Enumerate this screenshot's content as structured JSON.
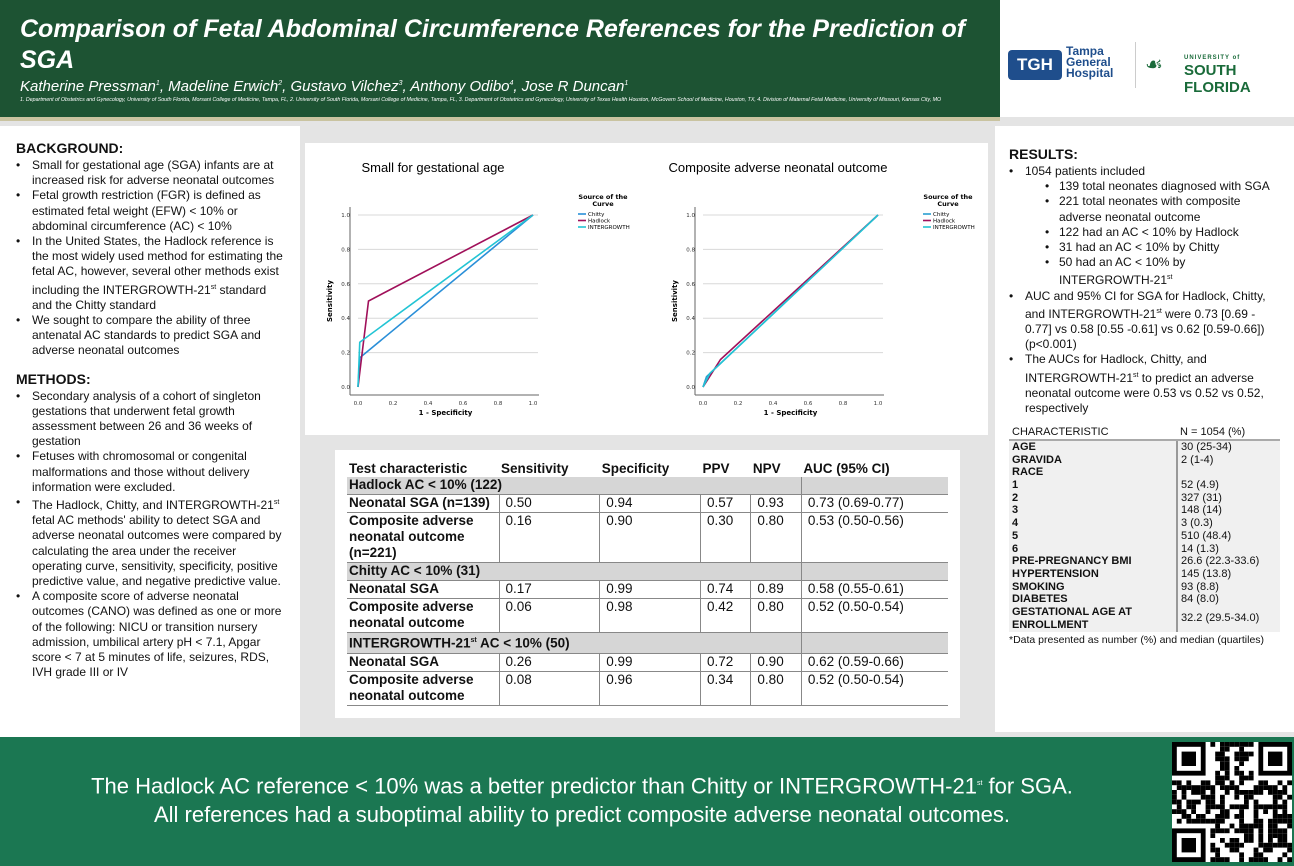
{
  "header": {
    "title": "Comparison of Fetal Abdominal Circumference References for the Prediction of SGA",
    "authors": [
      {
        "name": "Katherine Pressman",
        "sup": "1"
      },
      {
        "name": "Madeline Erwich",
        "sup": "2"
      },
      {
        "name": "Gustavo Vilchez",
        "sup": "3"
      },
      {
        "name": "Anthony Odibo",
        "sup": "4"
      },
      {
        "name": "Jose R Duncan",
        "sup": "1"
      }
    ],
    "affiliations": "1. Department of Obstetrics and Gynecology, University of South Florida, Morsani College of Medicine, Tampa, FL, 2. University of South Florida, Morsani College of Medicine, Tampa, FL, 3. Department of Obstetrics and Gynecology, University of Texas Health Houston, McGovern School of Medicine, Houston, TX, 4. Division of Maternal Fetal Medicine, University of Missouri, Kansas City, MO"
  },
  "logos": {
    "tgh_mark": "TGH",
    "tgh_name": "Tampa General Hospital",
    "usf_top": "UNIVERSITY of",
    "usf_main": "SOUTH FLORIDA"
  },
  "background": {
    "heading": "BACKGROUND:",
    "items": [
      "Small for gestational age (SGA) infants are at increased risk for adverse neonatal outcomes",
      "Fetal growth restriction (FGR) is defined as estimated fetal weight (EFW) < 10% or abdominal circumference (AC) < 10%",
      "In the United States, the Hadlock reference is the most widely used method for estimating the fetal AC, however, several other methods exist including the INTERGROWTH-21st standard and the Chitty standard",
      "We sought to compare the ability of three antenatal AC standards to predict SGA and adverse neonatal outcomes"
    ]
  },
  "methods": {
    "heading": "METHODS:",
    "items": [
      "Secondary analysis of a cohort of singleton gestations that underwent fetal growth assessment between 26 and 36 weeks of gestation",
      "Fetuses with chromosomal or congenital malformations and those without delivery information were excluded.",
      "The Hadlock, Chitty, and INTERGROWTH-21st fetal AC methods' ability to detect SGA and adverse neonatal outcomes were compared by calculating the area under the receiver operating curve, sensitivity, specificity, positive predictive value, and negative predictive value.",
      "A composite score of adverse neonatal outcomes (CANO) was defined as one or more of the following: NICU or transition nursery admission, umbilical artery pH < 7.1, Apgar score < 7 at 5 minutes of life, seizures, RDS, IVH grade III or IV"
    ]
  },
  "chart_data": [
    {
      "type": "line",
      "title": "Small for gestational age",
      "xlabel": "1 - Specificity",
      "ylabel": "Sensitivity",
      "xlim": [
        0,
        1
      ],
      "ylim": [
        0,
        1
      ],
      "xticks": [
        "0.0",
        "0.2",
        "0.4",
        "0.6",
        "0.8",
        "1.0"
      ],
      "yticks": [
        "0.0",
        "0.2",
        "0.4",
        "0.6",
        "0.8",
        "1.0"
      ],
      "grid": "horizontal",
      "legend_title": "Source of the Curve",
      "legend": "top-right",
      "series": [
        {
          "name": "Chitty",
          "color": "#2a8fd8",
          "points": [
            [
              0,
              0
            ],
            [
              0.01,
              0.17
            ],
            [
              1,
              1
            ]
          ]
        },
        {
          "name": "Hadlock",
          "color": "#a0105a",
          "points": [
            [
              0,
              0
            ],
            [
              0.06,
              0.5
            ],
            [
              1,
              1
            ]
          ]
        },
        {
          "name": "INTERGROWTH",
          "color": "#22c4d4",
          "points": [
            [
              0,
              0
            ],
            [
              0.01,
              0.26
            ],
            [
              1,
              1
            ]
          ]
        }
      ]
    },
    {
      "type": "line",
      "title": "Composite adverse neonatal outcome",
      "xlabel": "1 - Specificity",
      "ylabel": "Sensitivity",
      "xlim": [
        0,
        1
      ],
      "ylim": [
        0,
        1
      ],
      "xticks": [
        "0.0",
        "0.2",
        "0.4",
        "0.6",
        "0.8",
        "1.0"
      ],
      "yticks": [
        "0.0",
        "0.2",
        "0.4",
        "0.6",
        "0.8",
        "1.0"
      ],
      "grid": "horizontal",
      "legend_title": "Source of the Curve",
      "legend": "top-right",
      "series": [
        {
          "name": "Chitty",
          "color": "#2a9fd0",
          "points": [
            [
              0,
              0
            ],
            [
              0.02,
              0.06
            ],
            [
              1,
              1
            ]
          ]
        },
        {
          "name": "Hadlock",
          "color": "#a0105a",
          "points": [
            [
              0,
              0
            ],
            [
              0.1,
              0.16
            ],
            [
              1,
              1
            ]
          ]
        },
        {
          "name": "INTERGROWTH",
          "color": "#22c4d4",
          "points": [
            [
              0,
              0
            ],
            [
              0.04,
              0.08
            ],
            [
              1,
              1
            ]
          ]
        }
      ]
    }
  ],
  "main_table": {
    "headers": [
      "Test characteristic",
      "Sensitivity",
      "Specificity",
      "PPV",
      "NPV",
      "AUC (95% CI)"
    ],
    "groups": [
      {
        "label": "Hadlock AC < 10% (122)",
        "rows": [
          [
            "Neonatal SGA (n=139)",
            "0.50",
            "0.94",
            "0.57",
            "0.93",
            "0.73 (0.69-0.77)"
          ],
          [
            "Composite adverse neonatal outcome (n=221)",
            "0.16",
            "0.90",
            "0.30",
            "0.80",
            "0.53 (0.50-0.56)"
          ]
        ]
      },
      {
        "label": "Chitty AC < 10% (31)",
        "rows": [
          [
            "Neonatal SGA",
            "0.17",
            "0.99",
            "0.74",
            "0.89",
            "0.58 (0.55-0.61)"
          ],
          [
            "Composite adverse neonatal outcome",
            "0.06",
            "0.98",
            "0.42",
            "0.80",
            "0.52 (0.50-0.54)"
          ]
        ]
      },
      {
        "label": "INTERGROWTH-21st AC < 10% (50)",
        "rows": [
          [
            "Neonatal SGA",
            "0.26",
            "0.99",
            "0.72",
            "0.90",
            "0.62 (0.59-0.66)"
          ],
          [
            "Composite adverse neonatal outcome",
            "0.08",
            "0.96",
            "0.34",
            "0.80",
            "0.52 (0.50-0.54)"
          ]
        ]
      }
    ]
  },
  "results": {
    "heading": "RESULTS:",
    "items": [
      {
        "text": "1054 patients included",
        "sub": [
          "139 total neonates diagnosed with SGA",
          "221 total neonates with composite adverse neonatal outcome",
          "122 had an AC < 10% by Hadlock",
          "31 had an AC < 10% by Chitty",
          "50 had an AC < 10% by INTERGROWTH-21st"
        ]
      },
      {
        "text": "AUC and 95% CI for SGA for Hadlock, Chitty, and INTERGROWTH-21st were 0.73 [0.69 - 0.77] vs 0.58 [0.55 -0.61] vs 0.62 [0.59-0.66]) (p<0.001)",
        "sub": []
      },
      {
        "text": "The AUCs for Hadlock, Chitty, and INTERGROWTH-21st to predict an adverse neonatal outcome were 0.53 vs 0.52 vs 0.52, respectively",
        "sub": []
      }
    ]
  },
  "char_table": {
    "headers": [
      "CHARACTERISTIC",
      "N = 1054 (%)"
    ],
    "rows": [
      [
        "AGE",
        "30 (25-34)"
      ],
      [
        "GRAVIDA",
        "2 (1-4)"
      ],
      [
        "RACE",
        ""
      ],
      [
        "1",
        "52 (4.9)"
      ],
      [
        "2",
        "327 (31)"
      ],
      [
        "3",
        "148 (14)"
      ],
      [
        "4",
        "3 (0.3)"
      ],
      [
        "5",
        "510 (48.4)"
      ],
      [
        "6",
        "14 (1.3)"
      ],
      [
        "PRE-PREGNANCY BMI",
        "26.6 (22.3-33.6)"
      ],
      [
        "HYPERTENSION",
        "145 (13.8)"
      ],
      [
        "SMOKING",
        "93 (8.8)"
      ],
      [
        "DIABETES",
        "84 (8.0)"
      ],
      [
        "GESTATIONAL AGE AT ENROLLMENT",
        "32.2 (29.5-34.0)"
      ]
    ],
    "note": "*Data presented as number (%) and median (quartiles)"
  },
  "footer": {
    "line1": "The Hadlock AC reference < 10% was a better predictor than Chitty or INTERGROWTH-21st for SGA.",
    "line2": "All references had a suboptimal ability to predict composite adverse neonatal outcomes."
  },
  "colors": {
    "header": "#1d5333",
    "footer": "#1b7752"
  }
}
